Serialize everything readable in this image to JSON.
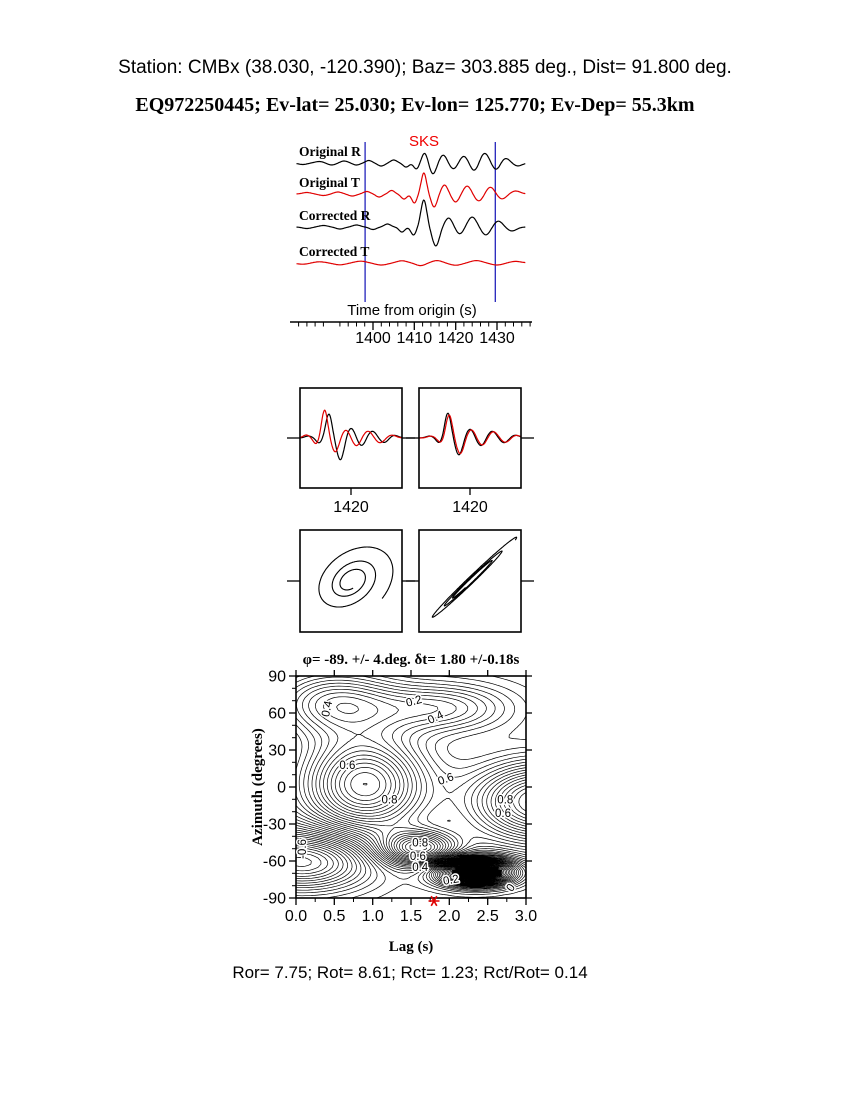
{
  "header": {
    "station_line": "Station: CMBx (38.030, -120.390); Baz=  303.885 deg., Dist=   91.800 deg.",
    "event_line": "EQ972250445; Ev-lat=  25.030; Ev-lon= 125.770; Ev-Dep= 55.3km"
  },
  "footer": {
    "stats_line": "Ror= 7.75; Rot= 8.61; Rct= 1.23; Rct/Rot= 0.14"
  },
  "colors": {
    "black": "#000000",
    "red": "#e00000",
    "window_blue": "#2323bb",
    "phase_red": "#f00000"
  },
  "chart_data": [
    {
      "id": "seismograms",
      "type": "line",
      "phase_label": "SKS",
      "xlabel": "Time from origin (s)",
      "xlim": [
        1381.5,
        1437
      ],
      "x_major_ticks": [
        1400,
        1410,
        1420,
        1430
      ],
      "x_minor_step": 2,
      "window_lines": [
        1398.1,
        1429.6
      ],
      "traces": [
        {
          "label": "Original R",
          "color": "black",
          "wavelets": [
            [
              1383,
              -1.5,
              1.5
            ],
            [
              1387,
              1.5,
              1.5
            ],
            [
              1390,
              -2,
              1.4
            ],
            [
              1393,
              2,
              1.3
            ],
            [
              1396,
              -2,
              1.2
            ],
            [
              1399,
              2.5,
              1.1
            ],
            [
              1402,
              -3,
              1.2
            ],
            [
              1405,
              3,
              1.1
            ],
            [
              1408,
              -4,
              1.0
            ],
            [
              1410.5,
              -6,
              0.9
            ],
            [
              1412.5,
              10,
              1.0
            ],
            [
              1414.5,
              -11,
              1.1
            ],
            [
              1417,
              8,
              1.2
            ],
            [
              1419.5,
              -6,
              1.3
            ],
            [
              1422,
              7,
              1.4
            ],
            [
              1424.5,
              -8,
              1.4
            ],
            [
              1427,
              10,
              1.5
            ],
            [
              1429.8,
              -7,
              1.4
            ],
            [
              1432,
              5,
              1.5
            ],
            [
              1435,
              -3,
              1.5
            ]
          ]
        },
        {
          "label": "Original T",
          "color": "red",
          "wavelets": [
            [
              1384,
              1.5,
              1.5
            ],
            [
              1388,
              -1.5,
              1.5
            ],
            [
              1391.5,
              2,
              1.4
            ],
            [
              1395,
              -2,
              1.3
            ],
            [
              1398.5,
              2.5,
              1.2
            ],
            [
              1401.5,
              -3,
              1.1
            ],
            [
              1404.5,
              3.5,
              1.0
            ],
            [
              1407.5,
              -5,
              1.0
            ],
            [
              1410,
              -9,
              0.85
            ],
            [
              1412.3,
              21,
              0.9
            ],
            [
              1414.8,
              -13,
              1.0
            ],
            [
              1417.3,
              9,
              1.1
            ],
            [
              1420,
              -8,
              1.2
            ],
            [
              1422.8,
              8,
              1.3
            ],
            [
              1425.6,
              -7,
              1.4
            ],
            [
              1428.4,
              7,
              1.4
            ],
            [
              1431.2,
              -5,
              1.5
            ],
            [
              1434.5,
              3,
              1.6
            ]
          ]
        },
        {
          "label": "Corrected R",
          "color": "black",
          "wavelets": [
            [
              1384,
              -1.5,
              1.5
            ],
            [
              1388,
              1.5,
              1.5
            ],
            [
              1392,
              -2,
              1.4
            ],
            [
              1396,
              2,
              1.3
            ],
            [
              1400,
              -2.5,
              1.2
            ],
            [
              1403.5,
              3,
              1.1
            ],
            [
              1407,
              -5,
              1.0
            ],
            [
              1409.8,
              -8,
              0.9
            ],
            [
              1412.3,
              27,
              1.0
            ],
            [
              1415.2,
              -19,
              1.2
            ],
            [
              1418.3,
              9,
              1.3
            ],
            [
              1421,
              -7,
              1.3
            ],
            [
              1424,
              10,
              1.5
            ],
            [
              1427.3,
              -8,
              1.5
            ],
            [
              1430.3,
              6,
              1.5
            ],
            [
              1433.6,
              -4,
              1.6
            ]
          ]
        },
        {
          "label": "Corrected T",
          "color": "red",
          "wavelets": [
            [
              1383,
              -1.2,
              2
            ],
            [
              1387,
              1.2,
              2
            ],
            [
              1392,
              -1.8,
              2
            ],
            [
              1397,
              1.8,
              2
            ],
            [
              1402,
              -2,
              2
            ],
            [
              1407,
              2.2,
              1.8
            ],
            [
              1411.5,
              -2.6,
              1.6
            ],
            [
              1415.5,
              2.4,
              1.8
            ],
            [
              1420,
              -2.2,
              2
            ],
            [
              1425,
              2.4,
              2
            ],
            [
              1430,
              -2,
              2
            ],
            [
              1434.5,
              1.6,
              2
            ]
          ]
        }
      ]
    },
    {
      "id": "window-original",
      "type": "line",
      "xlim": [
        1408,
        1432
      ],
      "x_tick": 1420,
      "x_tick_label": "1420",
      "series": [
        {
          "name": "R original",
          "color": "black",
          "wavelets": [
            [
              1410,
              2,
              1.2
            ],
            [
              1412.5,
              -5,
              1.0
            ],
            [
              1414.8,
              24,
              1.05
            ],
            [
              1417.5,
              -22,
              1.2
            ],
            [
              1420,
              10,
              1.3
            ],
            [
              1422.5,
              -8,
              1.3
            ],
            [
              1425,
              7,
              1.5
            ],
            [
              1427.8,
              -5,
              1.5
            ],
            [
              1430,
              3,
              1.5
            ]
          ]
        },
        {
          "name": "T original",
          "color": "red",
          "wavelets": [
            [
              1409.5,
              3,
              1.1
            ],
            [
              1411.8,
              -6,
              0.95
            ],
            [
              1413.8,
              28,
              1.0
            ],
            [
              1416.3,
              -14,
              1.15
            ],
            [
              1418.8,
              8,
              1.25
            ],
            [
              1421.3,
              -8,
              1.3
            ],
            [
              1424,
              7,
              1.5
            ],
            [
              1426.8,
              -5,
              1.5
            ],
            [
              1429.5,
              3,
              1.5
            ]
          ]
        }
      ]
    },
    {
      "id": "window-corrected",
      "type": "line",
      "xlim": [
        1408,
        1432
      ],
      "x_tick": 1420,
      "x_tick_label": "1420",
      "series": [
        {
          "name": "R corrected",
          "color": "black",
          "wavelets": [
            [
              1410.5,
              2,
              1.2
            ],
            [
              1412.8,
              -5,
              1.0
            ],
            [
              1414.8,
              25,
              1.05
            ],
            [
              1417.4,
              -17,
              1.2
            ],
            [
              1420,
              9,
              1.3
            ],
            [
              1422.6,
              -8,
              1.35
            ],
            [
              1425.2,
              7,
              1.5
            ],
            [
              1428,
              -5,
              1.5
            ],
            [
              1430.5,
              3,
              1.5
            ]
          ]
        },
        {
          "name": "T corrected",
          "color": "red",
          "wavelets": [
            [
              1410.8,
              1.9,
              1.2
            ],
            [
              1413.1,
              -4.6,
              1.0
            ],
            [
              1415.1,
              23.2,
              1.05
            ],
            [
              1417.7,
              -15.8,
              1.2
            ],
            [
              1420.3,
              8.4,
              1.3
            ],
            [
              1422.9,
              -7.4,
              1.35
            ],
            [
              1425.5,
              6.5,
              1.5
            ],
            [
              1428.3,
              -4.6,
              1.5
            ],
            [
              1430.8,
              2.8,
              1.5
            ]
          ]
        }
      ]
    },
    {
      "id": "particle-motion-original",
      "type": "scatter",
      "curve": {
        "ax": 40,
        "ay": 36,
        "phase_x": 0.5,
        "phase_y": 0.85,
        "decay": 0.085,
        "t0": -1.3,
        "t1": 17
      }
    },
    {
      "id": "particle-motion-corrected",
      "type": "scatter",
      "curve": {
        "ax": 46,
        "ay": 44,
        "phase_x": 0.0,
        "phase_y": 1.45,
        "decay": 0.06,
        "t0": -0.3,
        "t1": 17
      }
    },
    {
      "id": "error-surface",
      "type": "heatmap",
      "title": "φ= -89. +/- 4.deg. δt= 1.80 +/-0.18s",
      "xlabel": "Lag (s)",
      "ylabel": "Azimuth (degrees)",
      "xlim": [
        0,
        3
      ],
      "ylim": [
        -90,
        90
      ],
      "x_ticks": [
        0,
        0.5,
        1,
        1.5,
        2,
        2.5,
        3
      ],
      "x_tick_labels": [
        "0.0",
        "0.5",
        "1.0",
        "1.5",
        "2.0",
        "2.5",
        "3.0"
      ],
      "y_ticks": [
        90,
        60,
        30,
        0,
        -30,
        -60,
        -90
      ],
      "y_tick_labels": [
        "90",
        "60",
        "30",
        "0",
        "-30",
        "-60",
        "-90"
      ],
      "x_minor_step": 0.25,
      "y_minor_step": 10,
      "contour_levels": {
        "min": -1.45,
        "step": 0.05,
        "count": 49
      },
      "fill_threshold": -0.85,
      "best": {
        "phi_deg": -89,
        "phi_err_deg": 4,
        "dt_s": 1.8,
        "dt_err_s": 0.18
      },
      "field_blobs": [
        [
          0.55,
          0.5,
          0.8,
          68,
          26
        ],
        [
          0.45,
          1.9,
          0.9,
          64,
          20
        ],
        [
          0.95,
          0.9,
          0.8,
          2,
          40
        ],
        [
          1.0,
          3.2,
          0.9,
          -12,
          32
        ],
        [
          0.85,
          1.6,
          0.5,
          -50,
          14
        ],
        [
          -1.5,
          2.35,
          0.5,
          -69,
          11
        ],
        [
          -0.8,
          0.1,
          0.9,
          -60,
          24
        ]
      ],
      "contour_labels": [
        {
          "text": "0.4",
          "lag": 0.45,
          "az": 66,
          "rot": -78
        },
        {
          "text": "0.2",
          "lag": 1.55,
          "az": 70,
          "rot": -15
        },
        {
          "text": "0.4",
          "lag": 1.84,
          "az": 57,
          "rot": -25
        },
        {
          "text": "0.6",
          "lag": 0.67,
          "az": 18,
          "rot": 0
        },
        {
          "text": "0.6",
          "lag": 1.97,
          "az": 7,
          "rot": -20
        },
        {
          "text": "0.8",
          "lag": 1.22,
          "az": -10,
          "rot": 0
        },
        {
          "text": "0.8",
          "lag": 2.73,
          "az": -10,
          "rot": 0
        },
        {
          "text": "0.6",
          "lag": 2.7,
          "az": -21,
          "rot": 0
        },
        {
          "text": "0.8",
          "lag": 1.62,
          "az": -45,
          "rot": 0
        },
        {
          "text": "0.6",
          "lag": 1.59,
          "az": -56,
          "rot": 0
        },
        {
          "text": "0.4",
          "lag": 1.62,
          "az": -65,
          "rot": 0
        },
        {
          "text": "0.2",
          "lag": 2.03,
          "az": -75,
          "rot": -10
        },
        {
          "text": "0",
          "lag": 2.84,
          "az": -80,
          "rot": -55
        },
        {
          "text": "-0.6",
          "lag": 0.13,
          "az": -47,
          "rot": -90
        }
      ]
    }
  ]
}
